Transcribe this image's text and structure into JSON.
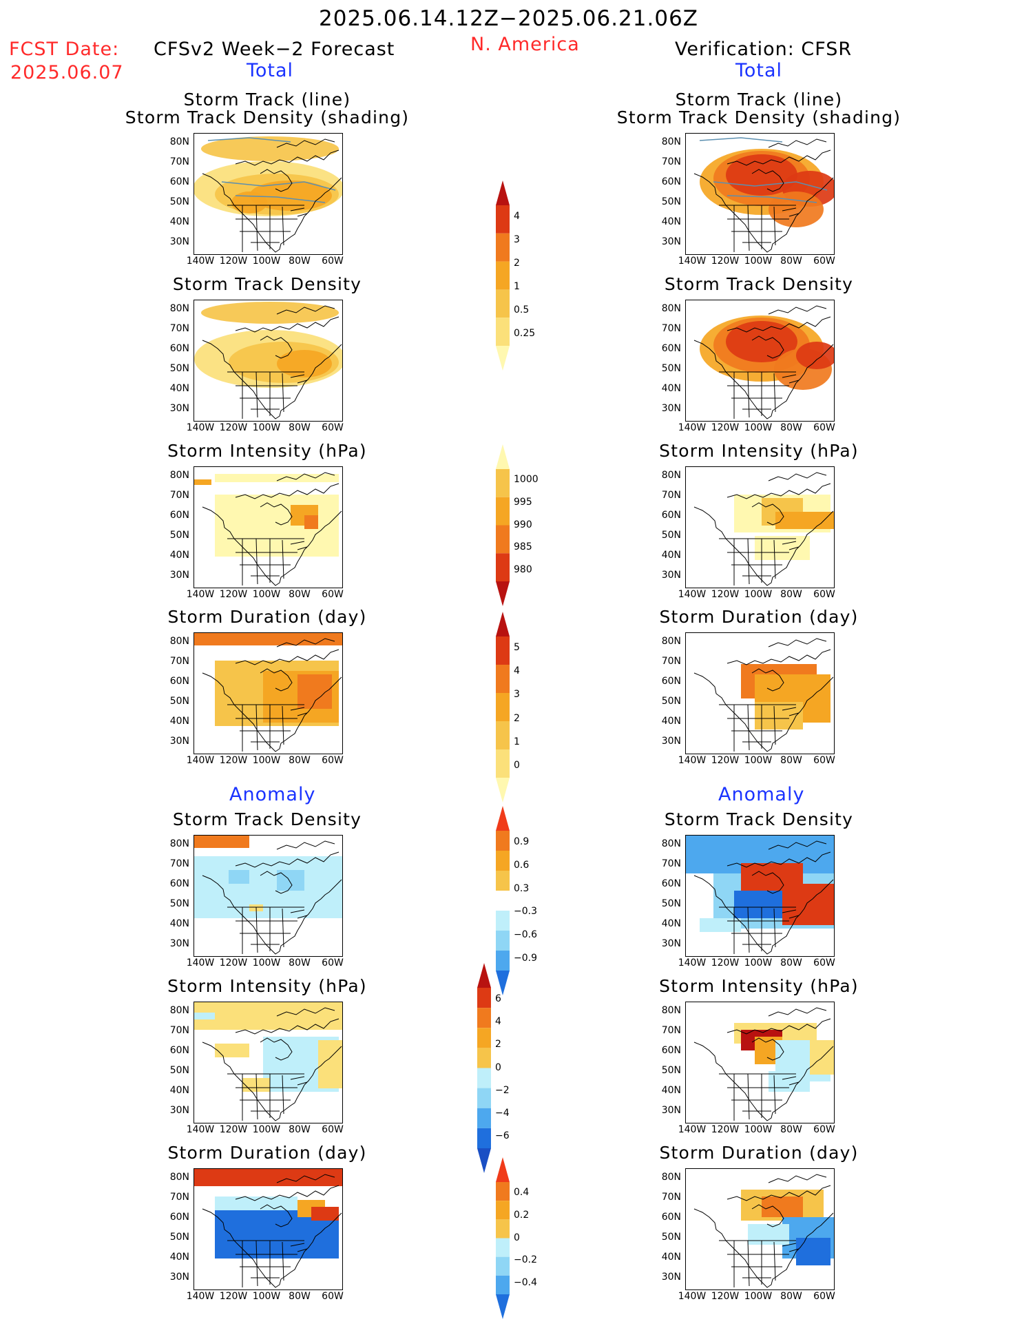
{
  "header": {
    "period": "2025.06.14.12Z−2025.06.21.06Z",
    "fcst_date_label": "FCST Date:",
    "fcst_date_value": "2025.06.07",
    "left_title": "CFSv2 Week−2 Forecast",
    "region": "N. America",
    "right_title": "Verification: CFSR",
    "left_section_total": "Total",
    "right_section_total": "Total",
    "left_section_anomaly": "Anomaly",
    "right_section_anomaly": "Anomaly"
  },
  "panel_titles": {
    "track_line": "Storm Track (line)",
    "track_shading": "Storm Track Density (shading)",
    "density": "Storm Track Density",
    "intensity": "Storm Intensity (hPa)",
    "duration": "Storm Duration (day)"
  },
  "axes": {
    "lat_labels": [
      "80N",
      "70N",
      "60N",
      "50N",
      "40N",
      "30N"
    ],
    "lon_labels": [
      "140W",
      "120W",
      "100W",
      "80W",
      "60W"
    ]
  },
  "colorbars": {
    "density_total": {
      "labels": [
        "4",
        "3",
        "2",
        "1",
        "0.5",
        "0.25"
      ]
    },
    "intensity_total": {
      "labels": [
        "1000",
        "995",
        "990",
        "985",
        "980"
      ]
    },
    "duration_total": {
      "labels": [
        "5",
        "4",
        "3",
        "2",
        "1",
        "0"
      ]
    },
    "density_anom": {
      "labels": [
        "0.9",
        "0.6",
        "0.3",
        "−0.3",
        "−0.6",
        "−0.9"
      ]
    },
    "intensity_anom": {
      "labels": [
        "6",
        "4",
        "2",
        "0",
        "−2",
        "−4",
        "−6"
      ]
    },
    "duration_anom": {
      "labels": [
        "0.4",
        "0.2",
        "0",
        "−0.2",
        "−0.4"
      ]
    }
  },
  "colors": {
    "warm": [
      "#fff8b0",
      "#fbe07a",
      "#f6c44a",
      "#f5a623",
      "#f07a1e",
      "#dd3a14",
      "#b81210"
    ],
    "cool": [
      "#bfeffa",
      "#8fd6f5",
      "#4da8ee",
      "#1f6fdd",
      "#1a4fc4"
    ],
    "title_red": "#ff2a2a",
    "title_blue": "#1a33ff"
  }
}
